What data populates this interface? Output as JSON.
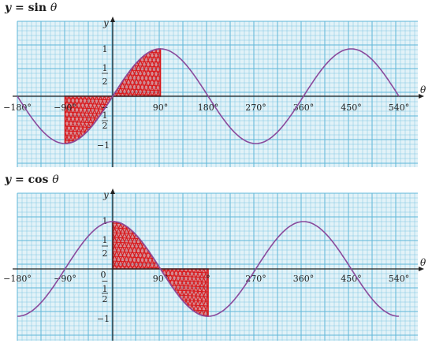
{
  "colors": {
    "grid": "#5fb7d8",
    "grid_bg": "#e2f2f8",
    "curve": "#8a4a9c",
    "shading": "#d8191c",
    "axis": "#222222"
  },
  "chart_data": [
    {
      "type": "line",
      "title_var": "y",
      "title_eq": "= sin",
      "title_theta": "θ",
      "xlabel": "θ",
      "ylabel": "y",
      "x_ticks": [
        -180,
        -90,
        90,
        180,
        270,
        360,
        450,
        540
      ],
      "x_tick_labels": [
        "−180°",
        "−90°",
        "90°",
        "180°",
        "270°",
        "360°",
        "450°",
        "540°"
      ],
      "y_tick_labels": [
        "1",
        "1",
        "2",
        "−",
        "1",
        "2",
        "−1"
      ],
      "xlim": [
        -180,
        540
      ],
      "ylim": [
        -1.2,
        1.2
      ],
      "series": [
        {
          "function": "sin",
          "x": [
            -180,
            -90,
            0,
            90,
            180,
            270,
            360,
            450,
            540
          ],
          "y": [
            0,
            -1,
            0,
            1,
            0,
            -1,
            0,
            1,
            0
          ]
        }
      ],
      "shaded_regions": [
        [
          -90,
          0
        ],
        [
          0,
          90
        ]
      ],
      "grid": true
    },
    {
      "type": "line",
      "title_var": "y",
      "title_eq": "= cos",
      "title_theta": "θ",
      "xlabel": "θ",
      "ylabel": "y",
      "x_ticks": [
        -180,
        -90,
        90,
        180,
        270,
        360,
        450,
        540
      ],
      "x_tick_labels": [
        "−180°",
        "−90°",
        "90°",
        "°",
        "270°",
        "360°",
        "450°",
        "540°"
      ],
      "y_tick_labels": [
        "1",
        "1",
        "2",
        "0",
        "−",
        "1",
        "2",
        "−1"
      ],
      "xlim": [
        -180,
        540
      ],
      "ylim": [
        -1.2,
        1.2
      ],
      "series": [
        {
          "function": "cos",
          "x": [
            -180,
            -90,
            0,
            90,
            180,
            270,
            360,
            450,
            540
          ],
          "y": [
            -1,
            0,
            1,
            0,
            -1,
            0,
            1,
            0,
            -1
          ]
        }
      ],
      "shaded_regions": [
        [
          0,
          90
        ],
        [
          90,
          180
        ]
      ],
      "grid": true
    }
  ]
}
